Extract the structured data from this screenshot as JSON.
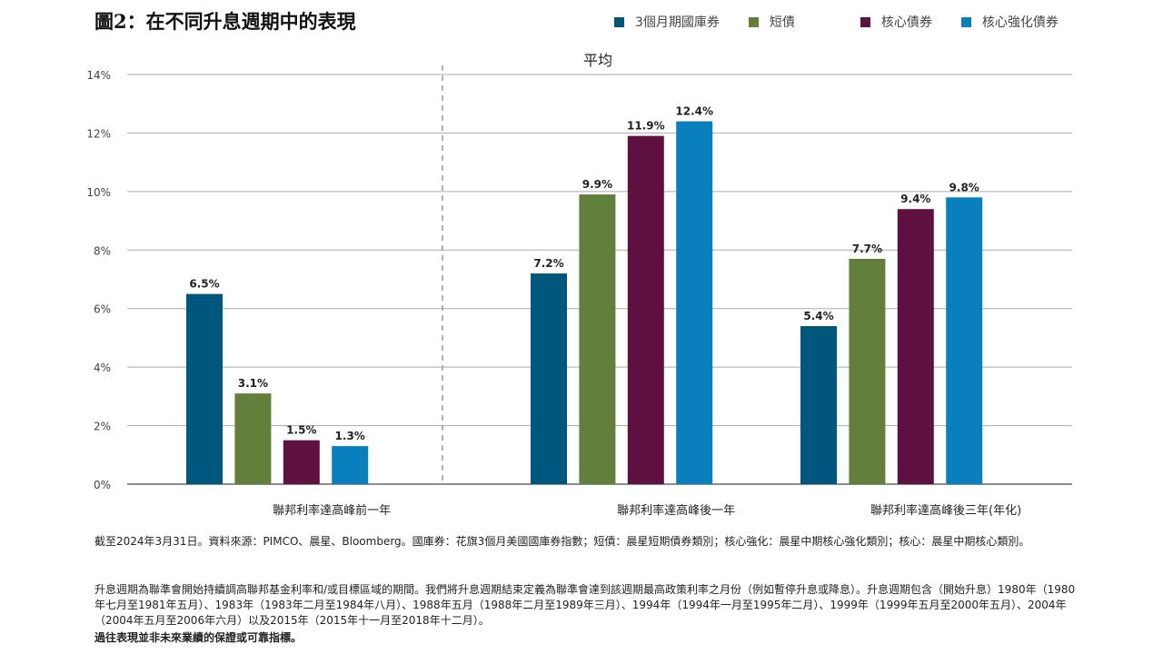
{
  "title": "圖2：在不同升息週期中的表現",
  "legend": [
    {
      "label": "3個月期國庫券",
      "color": "#00577e"
    },
    {
      "label": "短債",
      "color": "#62803b"
    },
    {
      "label": "核心債券",
      "color": "#5e1140"
    },
    {
      "label": "核心強化債券",
      "color": "#0a7fbd"
    }
  ],
  "chart_data": {
    "type": "bar",
    "subtitle": "平均",
    "categories": [
      "聯邦利率達高峰前一年",
      "聯邦利率達高峰後一年",
      "聯邦利率達高峰後三年(年化)"
    ],
    "series": [
      {
        "name": "3個月期國庫券",
        "values": [
          6.5,
          7.2,
          5.4
        ]
      },
      {
        "name": "短債",
        "values": [
          3.1,
          9.9,
          7.7
        ]
      },
      {
        "name": "核心債券",
        "values": [
          1.5,
          11.9,
          9.4
        ]
      },
      {
        "name": "核心強化債券",
        "values": [
          1.3,
          12.4,
          9.8
        ]
      }
    ],
    "data_labels": [
      [
        "6.5%",
        "3.1%",
        "1.5%",
        "1.3%"
      ],
      [
        "7.2%",
        "9.9%",
        "11.9%",
        "12.4%"
      ],
      [
        "5.4%",
        "7.7%",
        "9.4%",
        "9.8%"
      ]
    ],
    "ylim": [
      0,
      14
    ],
    "yticks": [
      "0%",
      "2%",
      "4%",
      "6%",
      "8%",
      "10%",
      "12%",
      "14%"
    ],
    "grid": true,
    "legend_position": "top-right"
  },
  "notes": {
    "source": "截至2024年3月31日。資料來源：PIMCO、晨星、Bloomberg。國庫券：花旗3個月美國國庫券指數；短債：晨星短期債券類別；核心強化：晨星中期核心強化類別；核心：晨星中期核心類別。",
    "definition": "升息週期為聯準會開始持續調高聯邦基金利率和/或目標區域的期間。我們將升息週期結束定義為聯準會達到該週期最高政策利率之月份（例如暫停升息或降息）。升息週期包含（開始升息）1980年（1980年七月至1981年五月）、1983年（1983年二月至1984年八月）、1988年五月（1988年二月至1989年三月）、1994年（1994年一月至1995年二月）、1999年（1999年五月至2000年五月）、2004年（2004年五月至2006年六月）以及2015年（2015年十一月至2018年十二月）。",
    "disclaimer": "過往表現並非未來業績的保證或可靠指標。"
  }
}
